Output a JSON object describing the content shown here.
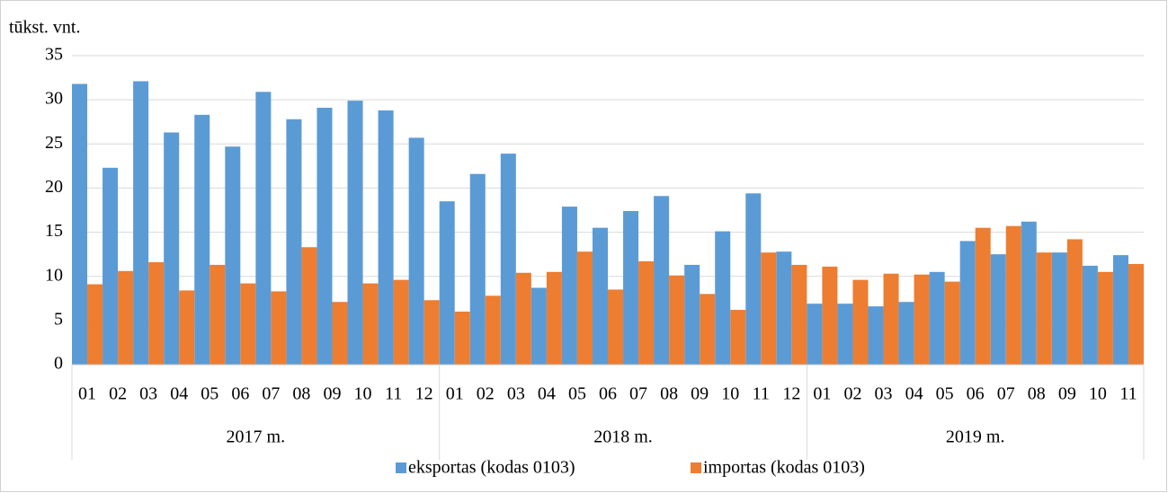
{
  "chart_data": {
    "type": "bar",
    "y_label": "tūkst. vnt.",
    "groups": [
      {
        "name": "2017 m.",
        "categories": [
          "01",
          "02",
          "03",
          "04",
          "05",
          "06",
          "07",
          "08",
          "09",
          "10",
          "11",
          "12"
        ]
      },
      {
        "name": "2018 m.",
        "categories": [
          "01",
          "02",
          "03",
          "04",
          "05",
          "06",
          "07",
          "08",
          "09",
          "10",
          "11",
          "12"
        ]
      },
      {
        "name": "2019 m.",
        "categories": [
          "01",
          "02",
          "03",
          "04",
          "05",
          "06",
          "07",
          "08",
          "09",
          "10",
          "11"
        ]
      }
    ],
    "series": [
      {
        "name": "eksportas (kodas 0103)",
        "color": "#5b9bd5",
        "values": [
          31.8,
          22.3,
          32.1,
          26.3,
          28.3,
          24.7,
          30.9,
          27.8,
          29.1,
          29.9,
          28.8,
          25.7,
          18.5,
          21.6,
          23.9,
          8.7,
          17.9,
          15.5,
          17.4,
          19.1,
          11.3,
          15.1,
          19.4,
          12.8,
          6.9,
          6.9,
          6.6,
          7.1,
          10.5,
          14.0,
          12.5,
          16.2,
          12.7,
          11.2,
          12.4
        ]
      },
      {
        "name": "importas (kodas 0103)",
        "color": "#ed7d31",
        "values": [
          9.1,
          10.6,
          11.6,
          8.4,
          11.3,
          9.2,
          8.3,
          13.3,
          7.1,
          9.2,
          9.6,
          7.3,
          6.0,
          7.8,
          10.4,
          10.5,
          12.8,
          8.5,
          11.7,
          10.1,
          8.0,
          6.2,
          12.7,
          11.3,
          11.1,
          9.6,
          10.3,
          10.2,
          9.4,
          15.5,
          15.7,
          12.7,
          14.2,
          10.5,
          11.4
        ]
      }
    ],
    "ylim": [
      0,
      35
    ],
    "yticks": [
      0,
      5,
      10,
      15,
      20,
      25,
      30,
      35
    ],
    "grid": true,
    "legend": "bottom"
  }
}
